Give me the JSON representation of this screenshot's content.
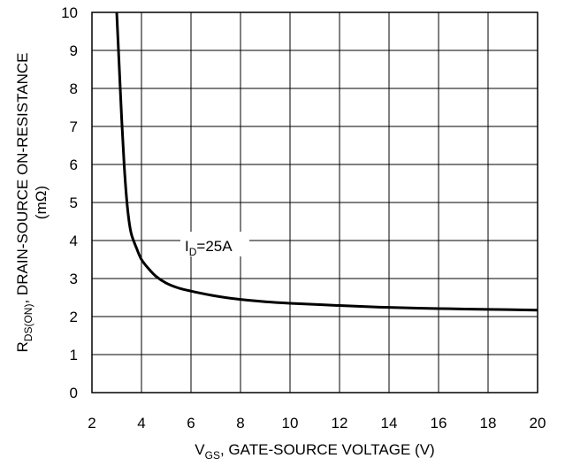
{
  "chart_data": {
    "type": "line",
    "xlabel": {
      "main": "V",
      "sub": "GS",
      "rest": ", GATE-SOURCE VOLTAGE (V)"
    },
    "ylabel": {
      "main": "R",
      "sub": "DS(ON)",
      "rest": ", DRAIN-SOURCE ON-RESISTANCE",
      "line2": "(mΩ)"
    },
    "xlim": [
      2,
      20
    ],
    "ylim": [
      0,
      10
    ],
    "xticks": [
      "2",
      "4",
      "6",
      "8",
      "10",
      "12",
      "14",
      "16",
      "18",
      "20"
    ],
    "yticks": [
      "0",
      "1",
      "2",
      "3",
      "4",
      "5",
      "6",
      "7",
      "8",
      "9",
      "10"
    ],
    "grid": true,
    "annotation": {
      "main": "I",
      "sub": "D",
      "rest": "=25A",
      "x": 6.0,
      "y": 4.0
    },
    "series": [
      {
        "x": [
          3.0,
          3.1,
          3.2,
          3.3,
          3.4,
          3.5,
          3.6,
          3.8,
          4.0,
          4.3,
          4.6,
          5.0,
          5.5,
          6.0,
          7.0,
          8.0,
          9.0,
          10.0,
          12.0,
          14.0,
          16.0,
          18.0,
          20.0
        ],
        "y": [
          10.0,
          8.6,
          7.2,
          6.0,
          5.1,
          4.5,
          4.15,
          3.8,
          3.5,
          3.25,
          3.05,
          2.88,
          2.75,
          2.67,
          2.54,
          2.45,
          2.39,
          2.35,
          2.29,
          2.24,
          2.21,
          2.19,
          2.17
        ]
      }
    ]
  }
}
